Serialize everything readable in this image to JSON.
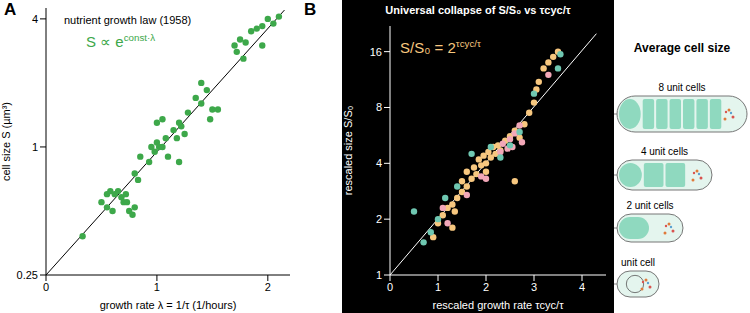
{
  "chart_data": [
    {
      "type": "scatter",
      "annotations": [
        {
          "text": "A"
        },
        {
          "text": "S ∝ e",
          "superscript": "const·λ"
        }
      ],
      "title": "nutrient growth law (1958)",
      "x_label": "growth rate  λ = 1/τ (1/hours)",
      "y_label": "cell size  S (µm³)",
      "xlim": [
        0,
        2.2
      ],
      "ylim": [
        0.25,
        4.5
      ],
      "xticks": [
        0,
        1,
        2
      ],
      "yticks": [
        0.25,
        1,
        4
      ],
      "log": "y",
      "grid": false,
      "series": [
        {
          "color": "#3da84a",
          "marker": "circle",
          "x": [
            0.33,
            0.5,
            0.55,
            0.58,
            0.62,
            0.65,
            0.68,
            0.7,
            0.72,
            0.55,
            0.6,
            0.75,
            0.78,
            0.8,
            0.73,
            0.8,
            0.85,
            0.83,
            0.95,
            0.98,
            1.0,
            1.02,
            1.05,
            1.08,
            0.93,
            1.0,
            1.05,
            1.1,
            1.15,
            1.2,
            1.22,
            1.25,
            1.28,
            1.2,
            1.18,
            1.35,
            1.4,
            1.45,
            1.4,
            1.5,
            1.55,
            1.48,
            1.7,
            1.75,
            1.8,
            1.72,
            1.85,
            1.9,
            1.95,
            2.0,
            2.05,
            2.1,
            1.78,
            1.95
          ],
          "values": [
            0.38,
            0.55,
            0.6,
            0.62,
            0.6,
            0.62,
            0.58,
            0.55,
            0.6,
            0.52,
            0.5,
            0.5,
            0.48,
            0.52,
            0.55,
            0.75,
            0.9,
            0.7,
            1.0,
            0.95,
            1.05,
            1.0,
            1.0,
            1.1,
            0.85,
            1.3,
            1.35,
            0.9,
            1.2,
            1.3,
            1.25,
            1.15,
            1.45,
            0.85,
            1.1,
            1.7,
            1.6,
            1.85,
            2.0,
            1.5,
            1.5,
            1.35,
            3.0,
            3.2,
            3.1,
            2.8,
            3.5,
            3.6,
            3.7,
            4.0,
            3.8,
            4.1,
            2.6,
            3.0
          ]
        }
      ],
      "fit_line": {
        "color": "#000000",
        "x": [
          0,
          2.15
        ],
        "values": [
          0.25,
          4.4
        ]
      }
    },
    {
      "type": "scatter",
      "annotations": [
        {
          "text": "B"
        },
        {
          "text": "S/S₀ = 2",
          "superscript": "τcyc/τ"
        }
      ],
      "title": "Universal collapse of S/S₀ vs τcyc/τ",
      "x_label": "rescaled growth rate  τcyc/τ",
      "y_label": "rescaled size  S/S₀",
      "xlim": [
        0,
        4.5
      ],
      "ylim": [
        1,
        22
      ],
      "xticks": [
        0,
        1,
        2,
        3,
        4
      ],
      "yticks": [
        1,
        2,
        4,
        8,
        16
      ],
      "log": "y",
      "grid": false,
      "series": [
        {
          "color": "#f7c77f",
          "marker": "circle",
          "x": [
            0.9,
            1.0,
            1.1,
            1.2,
            1.3,
            1.35,
            1.4,
            1.5,
            1.5,
            1.6,
            1.6,
            1.7,
            1.75,
            1.8,
            1.85,
            1.9,
            1.95,
            2.0,
            2.0,
            2.05,
            2.1,
            2.15,
            2.2,
            2.25,
            2.3,
            2.4,
            2.5,
            2.6,
            2.7,
            2.8,
            2.9,
            3.0,
            3.05,
            3.1,
            3.2,
            3.3,
            3.4,
            3.5,
            2.6,
            1.3
          ],
          "values": [
            1.6,
            1.9,
            2.1,
            2.3,
            2.4,
            2.2,
            2.6,
            2.8,
            3.2,
            3.0,
            3.6,
            3.3,
            3.8,
            3.5,
            4.2,
            3.9,
            4.4,
            4.0,
            3.6,
            4.6,
            4.3,
            4.9,
            4.5,
            5.0,
            4.7,
            5.3,
            5.6,
            6.0,
            5.5,
            6.5,
            7.5,
            8.5,
            10,
            11,
            13,
            14,
            15,
            16,
            3.2,
            1.8
          ]
        },
        {
          "color": "#f2a7b8",
          "marker": "circle",
          "x": [
            1.2,
            1.6,
            2.0,
            2.3,
            2.35,
            2.45,
            2.5,
            2.55,
            2.6,
            2.7,
            2.75,
            1.9,
            3.3,
            1.1
          ],
          "values": [
            1.9,
            2.7,
            3.3,
            4.6,
            5.1,
            4.8,
            5.4,
            4.9,
            5.8,
            6.4,
            5.2,
            3.4,
            12,
            2.3
          ]
        },
        {
          "color": "#6fc7b1",
          "marker": "circle",
          "x": [
            0.7,
            0.85,
            1.0,
            1.15,
            1.4,
            1.7,
            2.1,
            2.3,
            2.5,
            2.7,
            3.0,
            3.5,
            3.55,
            0.5
          ],
          "values": [
            1.5,
            1.7,
            2.0,
            2.6,
            3.0,
            4.5,
            4.9,
            4.3,
            5.0,
            5.9,
            9.5,
            13,
            15.5,
            2.2
          ]
        }
      ],
      "fit_line": {
        "color": "#ffffff",
        "x": [
          0,
          4.3
        ],
        "values": [
          1,
          20
        ]
      }
    }
  ],
  "diagram": {
    "title": "Average cell size",
    "cells": [
      {
        "label": "8 unit cells"
      },
      {
        "label": "4 unit cells"
      },
      {
        "label": "2 unit cells"
      },
      {
        "label": "unit cell"
      }
    ]
  }
}
